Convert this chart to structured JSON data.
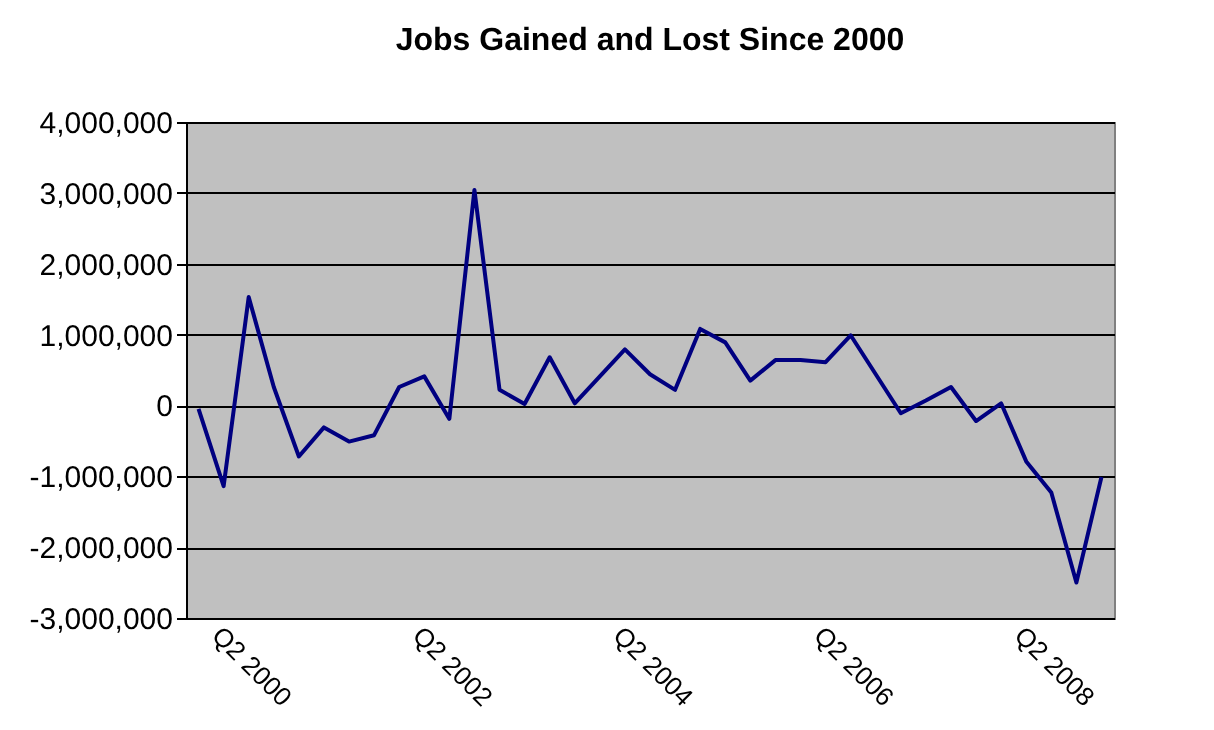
{
  "chart_data": {
    "type": "line",
    "title": "Jobs Gained and Lost Since 2000",
    "categories": [
      null,
      "Q2 2000",
      null,
      null,
      null,
      null,
      null,
      null,
      null,
      "Q2 2002",
      null,
      null,
      null,
      null,
      null,
      null,
      null,
      "Q2 2004",
      null,
      null,
      null,
      null,
      null,
      null,
      null,
      "Q2 2006",
      null,
      null,
      null,
      null,
      null,
      null,
      null,
      "Q2 2008",
      null,
      null,
      null
    ],
    "series": [
      {
        "color": "#000080",
        "values": [
          -50000,
          -1140000,
          1530000,
          260000,
          -720000,
          -310000,
          -510000,
          -420000,
          260000,
          410000,
          -190000,
          3040000,
          220000,
          20000,
          680000,
          30000,
          410000,
          790000,
          440000,
          220000,
          1080000,
          890000,
          350000,
          640000,
          640000,
          610000,
          990000,
          440000,
          -110000,
          70000,
          260000,
          -220000,
          30000,
          -790000,
          -1230000,
          -2500000,
          -1010000
        ]
      }
    ],
    "ylim": [
      -3000000,
      4000000
    ],
    "yticks": [
      {
        "value": -3000000,
        "label": "-3,000,000"
      },
      {
        "value": -2000000,
        "label": "-2,000,000"
      },
      {
        "value": -1000000,
        "label": "-1,000,000"
      },
      0,
      {
        "value": 1000000,
        "label": "1,000,000"
      },
      {
        "value": 2000000,
        "label": "2,000,000"
      },
      {
        "value": 3000000,
        "label": "3,000,000"
      },
      {
        "value": 4000000,
        "label": "4,000,000"
      }
    ],
    "grid": "y",
    "marker": "none",
    "line_style": "solid"
  }
}
